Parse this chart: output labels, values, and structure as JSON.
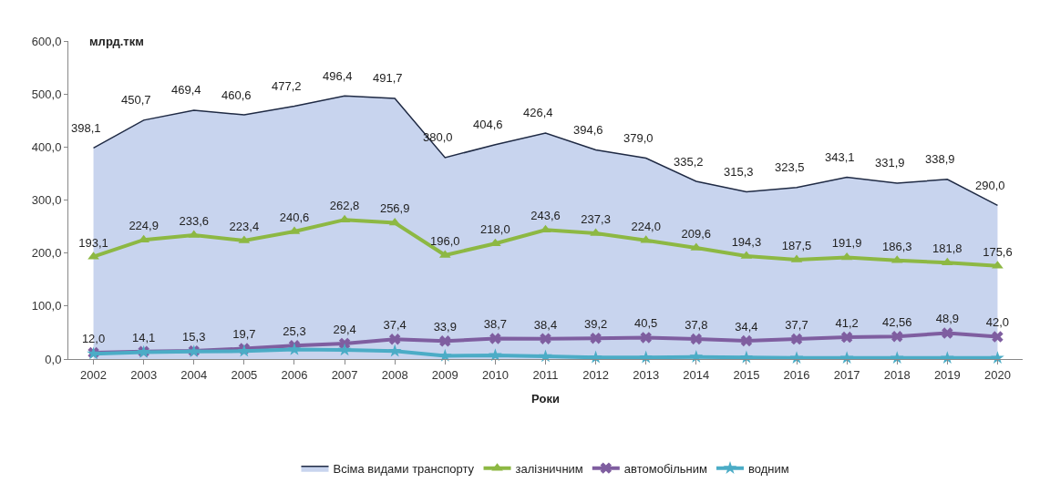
{
  "chart_data": {
    "type": "line",
    "xlabel": "Роки",
    "ylabel": "млрд.ткм",
    "categories": [
      "2002",
      "2003",
      "2004",
      "2005",
      "2006",
      "2007",
      "2008",
      "2009",
      "2010",
      "2011",
      "2012",
      "2013",
      "2014",
      "2015",
      "2016",
      "2017",
      "2018",
      "2019",
      "2020"
    ],
    "ylim": [
      0,
      600
    ],
    "yticks": [
      {
        "value": 0,
        "label": "0,0"
      },
      {
        "value": 100,
        "label": "100,0"
      },
      {
        "value": 200,
        "label": "200,0"
      },
      {
        "value": 300,
        "label": "300,0"
      },
      {
        "value": 400,
        "label": "400,0"
      },
      {
        "value": 500,
        "label": "500,0"
      },
      {
        "value": 600,
        "label": "600,0"
      }
    ],
    "legend": "bottom",
    "series": [
      {
        "name": "Всіма видами транспорту",
        "type": "area",
        "color": "#1f2a44",
        "marker": "none",
        "values": [
          398.1,
          450.7,
          469.4,
          460.6,
          477.2,
          496.4,
          491.7,
          380.0,
          404.6,
          426.4,
          394.6,
          379.0,
          335.2,
          315.3,
          323.5,
          343.1,
          331.9,
          338.9,
          290.0
        ],
        "value_labels": [
          "398,1",
          "450,7",
          "469,4",
          "460,6",
          "477,2",
          "496,4",
          "491,7",
          "380,0",
          "404,6",
          "426,4",
          "394,6",
          "379,0",
          "335,2",
          "315,3",
          "323,5",
          "343,1",
          "331,9",
          "338,9",
          "290,0"
        ]
      },
      {
        "name": "залізничним",
        "color": "#8db843",
        "marker": "triangle",
        "values": [
          193.1,
          224.9,
          233.6,
          223.4,
          240.6,
          262.8,
          256.9,
          196.0,
          218.0,
          243.6,
          237.3,
          224.0,
          209.6,
          194.3,
          187.5,
          191.9,
          186.3,
          181.8,
          175.6
        ],
        "value_labels": [
          "193,1",
          "224,9",
          "233,6",
          "223,4",
          "240,6",
          "262,8",
          "256,9",
          "196,0",
          "218,0",
          "243,6",
          "237,3",
          "224,0",
          "209,6",
          "194,3",
          "187,5",
          "191,9",
          "186,3",
          "181,8",
          "175,6"
        ]
      },
      {
        "name": "автомобільним",
        "color": "#7f5ea0",
        "marker": "cross",
        "values": [
          12.0,
          14.1,
          15.3,
          19.7,
          25.3,
          29.4,
          37.4,
          33.9,
          38.7,
          38.4,
          39.2,
          40.5,
          37.8,
          34.4,
          37.7,
          41.2,
          42.56,
          48.9,
          42.0
        ],
        "value_labels": [
          "12,0",
          "14,1",
          "15,3",
          "19,7",
          "25,3",
          "29,4",
          "37,4",
          "33,9",
          "38,7",
          "38,4",
          "39,2",
          "40,5",
          "37,8",
          "34,4",
          "37,7",
          "41,2",
          "42,56",
          "48,9",
          "42,0"
        ]
      },
      {
        "name": "водним",
        "color": "#4bacc6",
        "marker": "star",
        "values": [
          10,
          13,
          14,
          15,
          18,
          17,
          15,
          6,
          7,
          5,
          3,
          3,
          4,
          3,
          2,
          2,
          2,
          2,
          2
        ]
      }
    ]
  }
}
